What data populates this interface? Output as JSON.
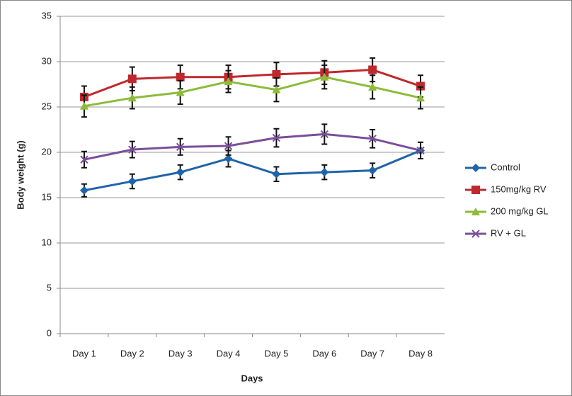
{
  "chart_data": {
    "type": "line",
    "x_label": "Days",
    "y_label": "Body weight (g)",
    "categories": [
      "Day 1",
      "Day 2",
      "Day 3",
      "Day 4",
      "Day 5",
      "Day 6",
      "Day 7",
      "Day 8"
    ],
    "ylim": [
      0,
      35
    ],
    "yticks": [
      0,
      5,
      10,
      15,
      20,
      25,
      30,
      35
    ],
    "grid": true,
    "legend": "right",
    "series": [
      {
        "name": "Control",
        "color": "#1f64a8",
        "marker": "diamond",
        "values": [
          15.8,
          16.8,
          17.8,
          19.3,
          17.6,
          17.8,
          18.0,
          20.2
        ],
        "errors": [
          0.7,
          0.8,
          0.8,
          0.9,
          0.8,
          0.8,
          0.8,
          0.9
        ]
      },
      {
        "name": "150mg/kg RV",
        "color": "#c0282d",
        "marker": "square",
        "values": [
          26.1,
          28.1,
          28.3,
          28.3,
          28.6,
          28.8,
          29.1,
          27.3
        ],
        "errors": [
          1.2,
          1.3,
          1.3,
          1.3,
          1.3,
          1.3,
          1.3,
          1.2
        ]
      },
      {
        "name": "200 mg/kg GL",
        "color": "#8dbb3a",
        "marker": "triangle",
        "values": [
          25.1,
          26.0,
          26.6,
          27.8,
          26.9,
          28.3,
          27.2,
          26.0
        ],
        "errors": [
          1.2,
          1.2,
          1.3,
          1.2,
          1.3,
          1.3,
          1.3,
          1.2
        ]
      },
      {
        "name": "RV + GL",
        "color": "#7a4f9a",
        "marker": "x",
        "values": [
          19.2,
          20.3,
          20.6,
          20.7,
          21.6,
          22.0,
          21.5,
          20.2
        ],
        "errors": [
          0.9,
          0.9,
          0.9,
          1.0,
          1.0,
          1.1,
          1.0,
          0.9
        ]
      }
    ]
  }
}
